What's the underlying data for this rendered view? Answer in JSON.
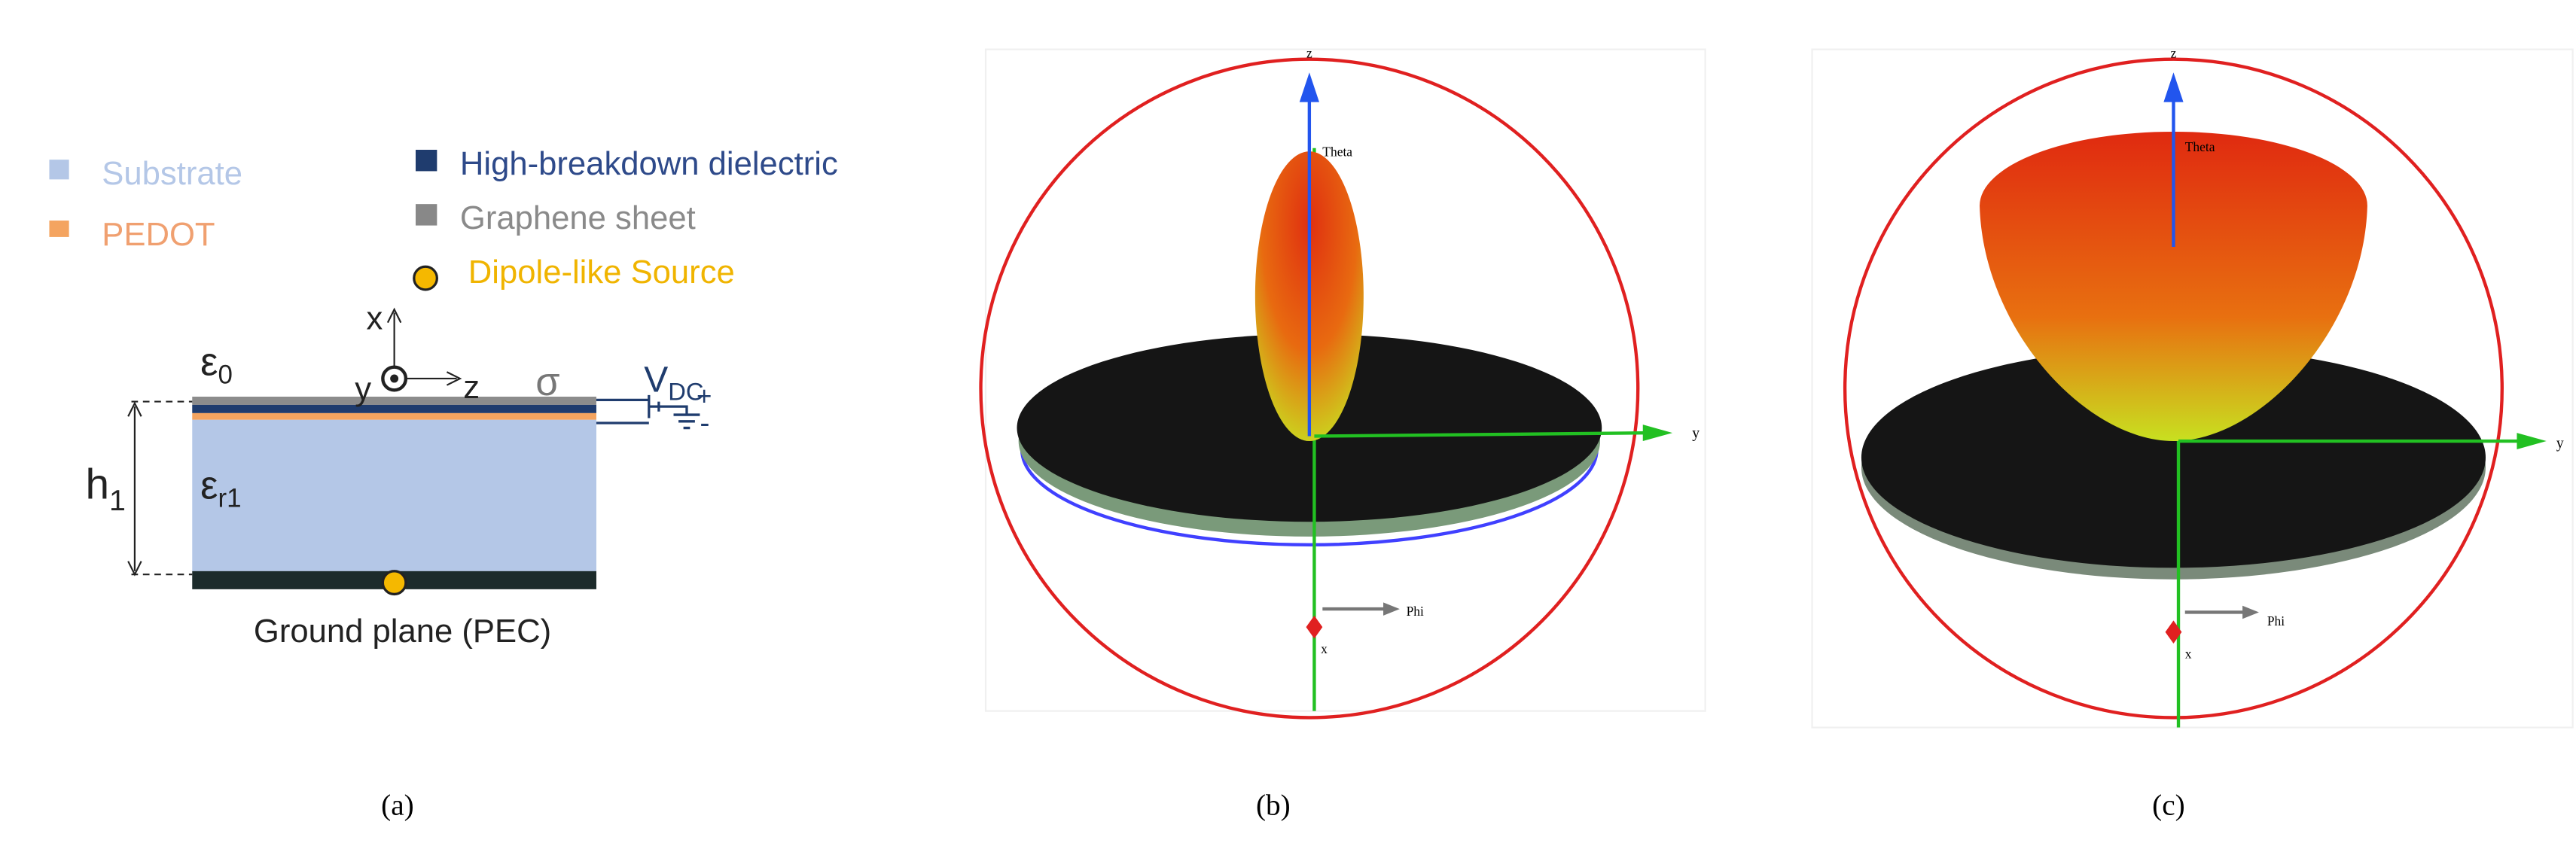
{
  "panel_a": {
    "legend": [
      "Substrate",
      "PEDOT",
      "High-breakdown dielectric",
      "Graphene sheet",
      "Dipole-like Source"
    ],
    "axes": {
      "x": "x",
      "y": "y",
      "z": "z"
    },
    "sigma": "σ",
    "vdc": {
      "base": "V",
      "sub": "DC"
    },
    "plus": "+",
    "minus": "-",
    "eps0": {
      "base": "ε",
      "sub": "0"
    },
    "h1": {
      "base": "h",
      "sub": "1"
    },
    "epsr1": {
      "base": "ε",
      "sub": "r1"
    },
    "ground": "Ground plane (PEC)"
  },
  "panel_b": {
    "z": "z",
    "theta": "Theta",
    "y": "y",
    "phi": "Phi",
    "x": "x"
  },
  "panel_c": {
    "z": "z",
    "theta": "Theta",
    "y": "y",
    "phi": "Phi",
    "x": "x"
  },
  "captions": [
    "(a)",
    "(b)",
    "(c)"
  ]
}
